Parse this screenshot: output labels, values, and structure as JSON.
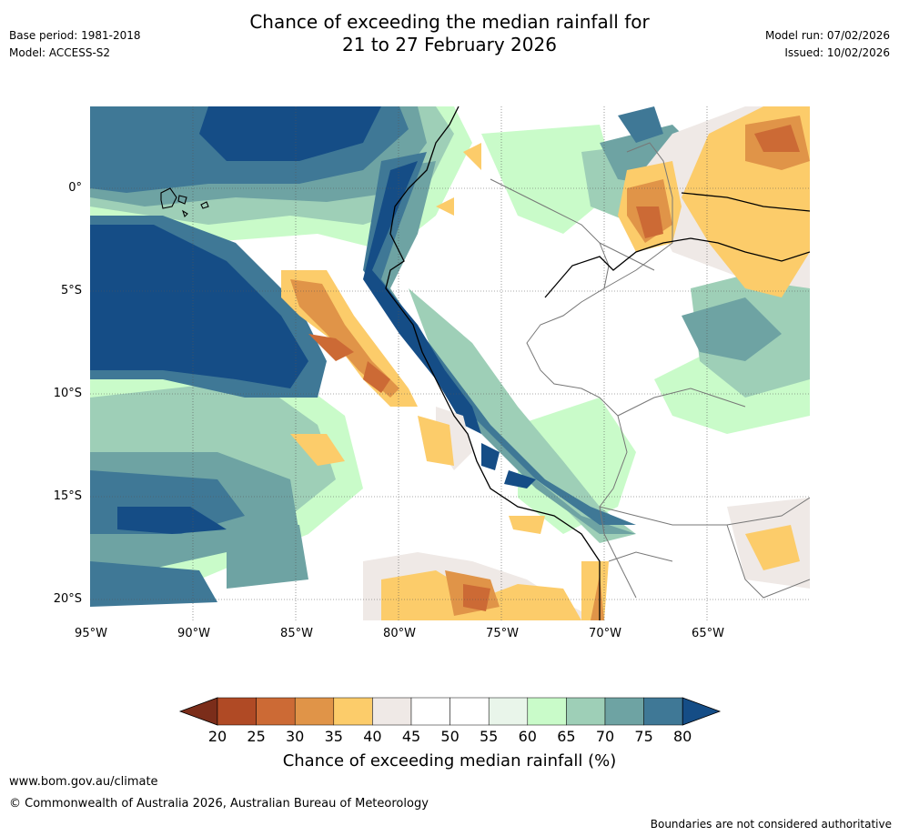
{
  "header": {
    "title_line1": "Chance of exceeding the median rainfall for",
    "title_line2": "21 to 27 February 2026",
    "base_period": "Base period: 1981-2018",
    "model": "Model: ACCESS-S2",
    "model_run": "Model run: 07/02/2026",
    "issued": "Issued: 10/02/2026"
  },
  "map": {
    "lat_labels": [
      "0°",
      "5°S",
      "10°S",
      "15°S",
      "20°S"
    ],
    "lon_labels": [
      "95°W",
      "90°W",
      "85°W",
      "80°W",
      "75°W",
      "70°W",
      "65°W"
    ]
  },
  "colorbar": {
    "ticks": [
      "20",
      "25",
      "30",
      "35",
      "40",
      "45",
      "50",
      "55",
      "60",
      "65",
      "70",
      "75",
      "80"
    ],
    "colors": [
      "#7b2d1a",
      "#b04a25",
      "#cc6a35",
      "#e09448",
      "#fccc6a",
      "#efe9e6",
      "#ffffff",
      "#ffffff",
      "#e9f5ea",
      "#c9fbc9",
      "#9ecfb7",
      "#6ea3a3",
      "#3f7896",
      "#154d86"
    ],
    "label": "Chance of exceeding median rainfall (%)"
  },
  "footer": {
    "website": "www.bom.gov.au/climate",
    "copyright": "© Commonwealth of Australia 2026, Australian Bureau of Meteorology",
    "disclaimer": "Boundaries are not considered authoritative"
  }
}
